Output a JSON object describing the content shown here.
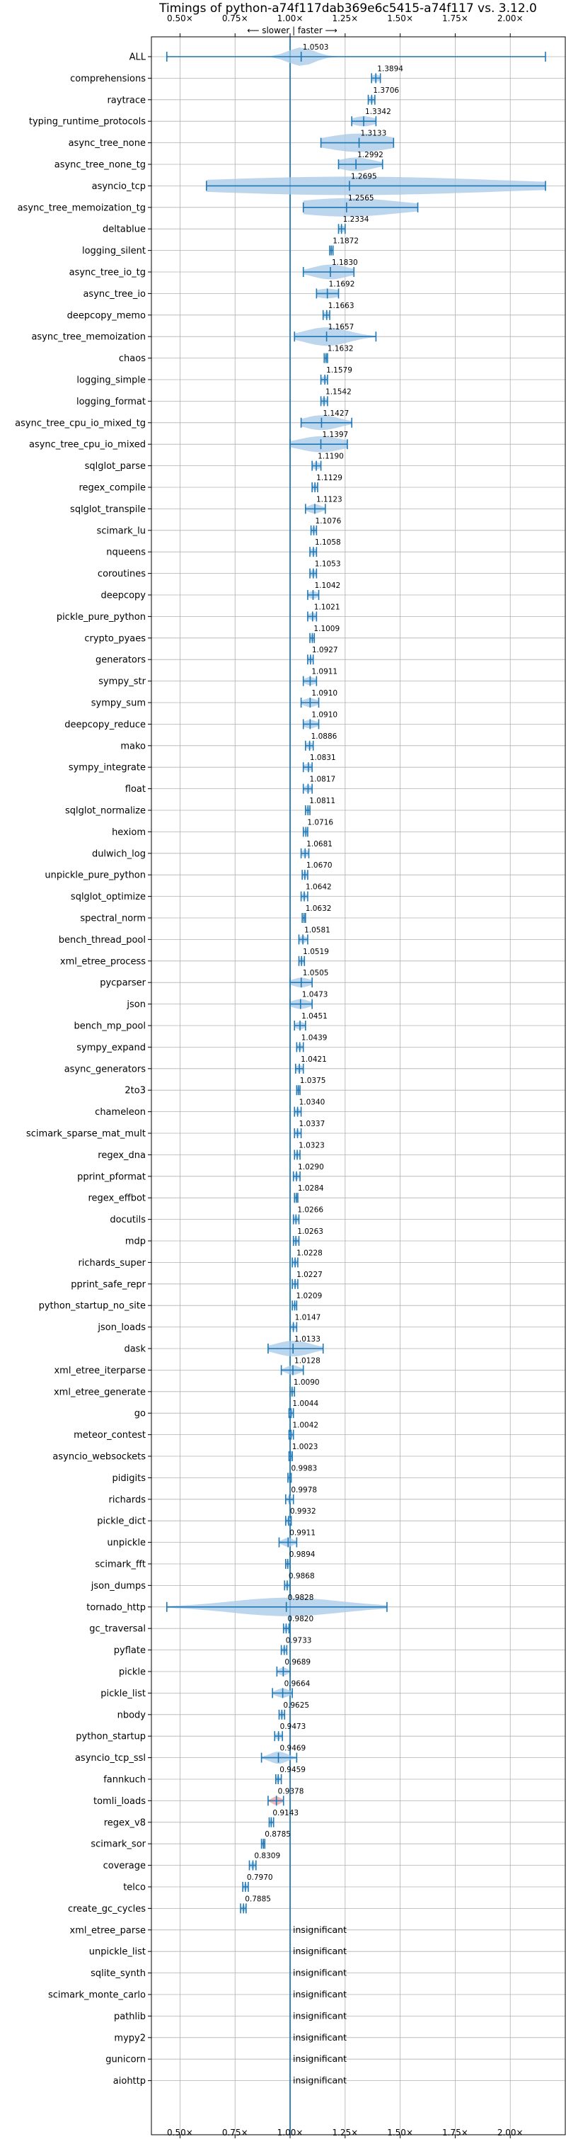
{
  "chart_data": {
    "type": "violin",
    "title": "Timings of python-a74f117dab369e6c5415-a74f117 vs. 3.12.0",
    "direction_note": "⟵ slower | faster ⟶",
    "x_ticks": [
      "0.50×",
      "0.75×",
      "1.00×",
      "1.25×",
      "1.50×",
      "1.75×",
      "2.00×"
    ],
    "x_tick_values": [
      0.5,
      0.75,
      1.0,
      1.25,
      1.5,
      1.75,
      2.0
    ],
    "xlim": [
      0.37,
      2.25
    ],
    "reference_line": 1.0,
    "grid": true,
    "insignificant_text": "insignificant",
    "benchmarks": [
      {
        "name": "ALL",
        "value": 1.0503,
        "label": "1.0503",
        "min": 0.44,
        "max": 2.16,
        "spread": 0.06
      },
      {
        "name": "comprehensions",
        "value": 1.3894,
        "label": "1.3894",
        "min": 1.37,
        "max": 1.41,
        "spread": 0.02
      },
      {
        "name": "raytrace",
        "value": 1.3706,
        "label": "1.3706",
        "min": 1.355,
        "max": 1.385,
        "spread": 0.015
      },
      {
        "name": "typing_runtime_protocols",
        "value": 1.3342,
        "label": "1.3342",
        "min": 1.28,
        "max": 1.39,
        "spread": 0.05
      },
      {
        "name": "async_tree_none",
        "value": 1.3133,
        "label": "1.3133",
        "min": 1.14,
        "max": 1.47,
        "spread": 0.15
      },
      {
        "name": "async_tree_none_tg",
        "value": 1.2992,
        "label": "1.2992",
        "min": 1.22,
        "max": 1.42,
        "spread": 0.08
      },
      {
        "name": "asyncio_tcp",
        "value": 1.2695,
        "label": "1.2695",
        "min": 0.62,
        "max": 2.16,
        "spread": 0.7
      },
      {
        "name": "async_tree_memoization_tg",
        "value": 1.2565,
        "label": "1.2565",
        "min": 1.06,
        "max": 1.58,
        "spread": 0.25
      },
      {
        "name": "deltablue",
        "value": 1.2334,
        "label": "1.2334",
        "min": 1.22,
        "max": 1.25,
        "spread": 0.015
      },
      {
        "name": "logging_silent",
        "value": 1.1872,
        "label": "1.1872",
        "min": 1.18,
        "max": 1.195,
        "spread": 0.01
      },
      {
        "name": "async_tree_io_tg",
        "value": 1.183,
        "label": "1.1830",
        "min": 1.06,
        "max": 1.29,
        "spread": 0.08
      },
      {
        "name": "async_tree_io",
        "value": 1.1692,
        "label": "1.1692",
        "min": 1.12,
        "max": 1.22,
        "spread": 0.06
      },
      {
        "name": "deepcopy_memo",
        "value": 1.1663,
        "label": "1.1663",
        "min": 1.15,
        "max": 1.18,
        "spread": 0.015
      },
      {
        "name": "async_tree_memoization",
        "value": 1.1657,
        "label": "1.1657",
        "min": 1.02,
        "max": 1.39,
        "spread": 0.1
      },
      {
        "name": "chaos",
        "value": 1.1632,
        "label": "1.1632",
        "min": 1.155,
        "max": 1.17,
        "spread": 0.01
      },
      {
        "name": "logging_simple",
        "value": 1.1579,
        "label": "1.1579",
        "min": 1.14,
        "max": 1.17,
        "spread": 0.015
      },
      {
        "name": "logging_format",
        "value": 1.1542,
        "label": "1.1542",
        "min": 1.14,
        "max": 1.17,
        "spread": 0.015
      },
      {
        "name": "async_tree_cpu_io_mixed_tg",
        "value": 1.1427,
        "label": "1.1427",
        "min": 1.05,
        "max": 1.28,
        "spread": 0.08
      },
      {
        "name": "async_tree_cpu_io_mixed",
        "value": 1.1397,
        "label": "1.1397",
        "min": 1.0,
        "max": 1.26,
        "spread": 0.1
      },
      {
        "name": "sqlglot_parse",
        "value": 1.119,
        "label": "1.1190",
        "min": 1.1,
        "max": 1.14,
        "spread": 0.02
      },
      {
        "name": "regex_compile",
        "value": 1.1129,
        "label": "1.1129",
        "min": 1.1,
        "max": 1.125,
        "spread": 0.01
      },
      {
        "name": "sqlglot_transpile",
        "value": 1.1123,
        "label": "1.1123",
        "min": 1.07,
        "max": 1.16,
        "spread": 0.03
      },
      {
        "name": "scimark_lu",
        "value": 1.1076,
        "label": "1.1076",
        "min": 1.095,
        "max": 1.12,
        "spread": 0.01
      },
      {
        "name": "nqueens",
        "value": 1.1058,
        "label": "1.1058",
        "min": 1.09,
        "max": 1.12,
        "spread": 0.015
      },
      {
        "name": "coroutines",
        "value": 1.1053,
        "label": "1.1053",
        "min": 1.09,
        "max": 1.12,
        "spread": 0.015
      },
      {
        "name": "deepcopy",
        "value": 1.1042,
        "label": "1.1042",
        "min": 1.08,
        "max": 1.13,
        "spread": 0.02
      },
      {
        "name": "pickle_pure_python",
        "value": 1.1021,
        "label": "1.1021",
        "min": 1.08,
        "max": 1.12,
        "spread": 0.02
      },
      {
        "name": "crypto_pyaes",
        "value": 1.1009,
        "label": "1.1009",
        "min": 1.09,
        "max": 1.11,
        "spread": 0.01
      },
      {
        "name": "generators",
        "value": 1.0927,
        "label": "1.0927",
        "min": 1.08,
        "max": 1.105,
        "spread": 0.01
      },
      {
        "name": "sympy_str",
        "value": 1.0911,
        "label": "1.0911",
        "min": 1.06,
        "max": 1.12,
        "spread": 0.025
      },
      {
        "name": "sympy_sum",
        "value": 1.091,
        "label": "1.0910",
        "min": 1.05,
        "max": 1.13,
        "spread": 0.03
      },
      {
        "name": "deepcopy_reduce",
        "value": 1.091,
        "label": "1.0910",
        "min": 1.06,
        "max": 1.13,
        "spread": 0.03
      },
      {
        "name": "mako",
        "value": 1.0886,
        "label": "1.0886",
        "min": 1.07,
        "max": 1.105,
        "spread": 0.015
      },
      {
        "name": "sympy_integrate",
        "value": 1.0831,
        "label": "1.0831",
        "min": 1.06,
        "max": 1.1,
        "spread": 0.02
      },
      {
        "name": "float",
        "value": 1.0817,
        "label": "1.0817",
        "min": 1.06,
        "max": 1.1,
        "spread": 0.015
      },
      {
        "name": "sqlglot_normalize",
        "value": 1.0811,
        "label": "1.0811",
        "min": 1.07,
        "max": 1.09,
        "spread": 0.01
      },
      {
        "name": "hexiom",
        "value": 1.0716,
        "label": "1.0716",
        "min": 1.06,
        "max": 1.08,
        "spread": 0.01
      },
      {
        "name": "dulwich_log",
        "value": 1.0681,
        "label": "1.0681",
        "min": 1.05,
        "max": 1.085,
        "spread": 0.015
      },
      {
        "name": "unpickle_pure_python",
        "value": 1.067,
        "label": "1.0670",
        "min": 1.055,
        "max": 1.08,
        "spread": 0.01
      },
      {
        "name": "sqlglot_optimize",
        "value": 1.0642,
        "label": "1.0642",
        "min": 1.05,
        "max": 1.08,
        "spread": 0.01
      },
      {
        "name": "spectral_norm",
        "value": 1.0632,
        "label": "1.0632",
        "min": 1.055,
        "max": 1.07,
        "spread": 0.008
      },
      {
        "name": "bench_thread_pool",
        "value": 1.0581,
        "label": "1.0581",
        "min": 1.04,
        "max": 1.08,
        "spread": 0.015
      },
      {
        "name": "xml_etree_process",
        "value": 1.0519,
        "label": "1.0519",
        "min": 1.04,
        "max": 1.065,
        "spread": 0.01
      },
      {
        "name": "pycparser",
        "value": 1.0505,
        "label": "1.0505",
        "min": 1.0,
        "max": 1.1,
        "spread": 0.04
      },
      {
        "name": "json",
        "value": 1.0473,
        "label": "1.0473",
        "min": 1.0,
        "max": 1.1,
        "spread": 0.04
      },
      {
        "name": "bench_mp_pool",
        "value": 1.0451,
        "label": "1.0451",
        "min": 1.02,
        "max": 1.07,
        "spread": 0.02
      },
      {
        "name": "sympy_expand",
        "value": 1.0439,
        "label": "1.0439",
        "min": 1.03,
        "max": 1.06,
        "spread": 0.01
      },
      {
        "name": "async_generators",
        "value": 1.0421,
        "label": "1.0421",
        "min": 1.025,
        "max": 1.06,
        "spread": 0.015
      },
      {
        "name": "2to3",
        "value": 1.0375,
        "label": "1.0375",
        "min": 1.03,
        "max": 1.045,
        "spread": 0.008
      },
      {
        "name": "chameleon",
        "value": 1.034,
        "label": "1.0340",
        "min": 1.02,
        "max": 1.05,
        "spread": 0.01
      },
      {
        "name": "scimark_sparse_mat_mult",
        "value": 1.0337,
        "label": "1.0337",
        "min": 1.02,
        "max": 1.05,
        "spread": 0.01
      },
      {
        "name": "regex_dna",
        "value": 1.0323,
        "label": "1.0323",
        "min": 1.02,
        "max": 1.045,
        "spread": 0.01
      },
      {
        "name": "pprint_pformat",
        "value": 1.029,
        "label": "1.0290",
        "min": 1.015,
        "max": 1.045,
        "spread": 0.01
      },
      {
        "name": "regex_effbot",
        "value": 1.0284,
        "label": "1.0284",
        "min": 1.02,
        "max": 1.035,
        "spread": 0.006
      },
      {
        "name": "docutils",
        "value": 1.0266,
        "label": "1.0266",
        "min": 1.015,
        "max": 1.04,
        "spread": 0.01
      },
      {
        "name": "mdp",
        "value": 1.0263,
        "label": "1.0263",
        "min": 1.015,
        "max": 1.04,
        "spread": 0.01
      },
      {
        "name": "richards_super",
        "value": 1.0228,
        "label": "1.0228",
        "min": 1.01,
        "max": 1.035,
        "spread": 0.01
      },
      {
        "name": "pprint_safe_repr",
        "value": 1.0227,
        "label": "1.0227",
        "min": 1.01,
        "max": 1.035,
        "spread": 0.01
      },
      {
        "name": "python_startup_no_site",
        "value": 1.0209,
        "label": "1.0209",
        "min": 1.01,
        "max": 1.03,
        "spread": 0.008
      },
      {
        "name": "json_loads",
        "value": 1.0147,
        "label": "1.0147",
        "min": 1.0,
        "max": 1.03,
        "spread": 0.01
      },
      {
        "name": "dask",
        "value": 1.0133,
        "label": "1.0133",
        "min": 0.9,
        "max": 1.15,
        "spread": 0.08
      },
      {
        "name": "xml_etree_iterparse",
        "value": 1.0128,
        "label": "1.0128",
        "min": 0.96,
        "max": 1.06,
        "spread": 0.03
      },
      {
        "name": "xml_etree_generate",
        "value": 1.009,
        "label": "1.0090",
        "min": 1.0,
        "max": 1.02,
        "spread": 0.008
      },
      {
        "name": "go",
        "value": 1.0044,
        "label": "1.0044",
        "min": 0.995,
        "max": 1.015,
        "spread": 0.008
      },
      {
        "name": "meteor_contest",
        "value": 1.0042,
        "label": "1.0042",
        "min": 0.995,
        "max": 1.015,
        "spread": 0.008
      },
      {
        "name": "asyncio_websockets",
        "value": 1.0023,
        "label": "1.0023",
        "min": 0.995,
        "max": 1.01,
        "spread": 0.006
      },
      {
        "name": "pidigits",
        "value": 0.9983,
        "label": "0.9983",
        "min": 0.99,
        "max": 1.005,
        "spread": 0.006
      },
      {
        "name": "richards",
        "value": 0.9978,
        "label": "0.9978",
        "min": 0.98,
        "max": 1.015,
        "spread": 0.01
      },
      {
        "name": "pickle_dict",
        "value": 0.9932,
        "label": "0.9932",
        "min": 0.98,
        "max": 1.005,
        "spread": 0.01
      },
      {
        "name": "unpickle",
        "value": 0.9911,
        "label": "0.9911",
        "min": 0.95,
        "max": 1.03,
        "spread": 0.025
      },
      {
        "name": "scimark_fft",
        "value": 0.9894,
        "label": "0.9894",
        "min": 0.98,
        "max": 1.0,
        "spread": 0.008
      },
      {
        "name": "json_dumps",
        "value": 0.9868,
        "label": "0.9868",
        "min": 0.975,
        "max": 1.0,
        "spread": 0.008
      },
      {
        "name": "tornado_http",
        "value": 0.9828,
        "label": "0.9828",
        "min": 0.44,
        "max": 1.44,
        "spread": 0.25
      },
      {
        "name": "gc_traversal",
        "value": 0.982,
        "label": "0.9820",
        "min": 0.97,
        "max": 0.995,
        "spread": 0.008
      },
      {
        "name": "pyflate",
        "value": 0.9733,
        "label": "0.9733",
        "min": 0.96,
        "max": 0.985,
        "spread": 0.008
      },
      {
        "name": "pickle",
        "value": 0.9689,
        "label": "0.9689",
        "min": 0.94,
        "max": 1.0,
        "spread": 0.02
      },
      {
        "name": "pickle_list",
        "value": 0.9664,
        "label": "0.9664",
        "min": 0.92,
        "max": 1.01,
        "spread": 0.03
      },
      {
        "name": "nbody",
        "value": 0.9625,
        "label": "0.9625",
        "min": 0.95,
        "max": 0.975,
        "spread": 0.008
      },
      {
        "name": "python_startup",
        "value": 0.9473,
        "label": "0.9473",
        "min": 0.93,
        "max": 0.965,
        "spread": 0.012
      },
      {
        "name": "asyncio_tcp_ssl",
        "value": 0.9469,
        "label": "0.9469",
        "min": 0.87,
        "max": 1.03,
        "spread": 0.04
      },
      {
        "name": "fannkuch",
        "value": 0.9459,
        "label": "0.9459",
        "min": 0.935,
        "max": 0.96,
        "spread": 0.008
      },
      {
        "name": "tomli_loads",
        "value": 0.9378,
        "label": "0.9378",
        "min": 0.9,
        "max": 0.97,
        "spread": 0.02,
        "highlight": true
      },
      {
        "name": "regex_v8",
        "value": 0.9143,
        "label": "0.9143",
        "min": 0.905,
        "max": 0.925,
        "spread": 0.006
      },
      {
        "name": "scimark_sor",
        "value": 0.8785,
        "label": "0.8785",
        "min": 0.87,
        "max": 0.885,
        "spread": 0.006
      },
      {
        "name": "coverage",
        "value": 0.8309,
        "label": "0.8309",
        "min": 0.815,
        "max": 0.845,
        "spread": 0.01
      },
      {
        "name": "telco",
        "value": 0.797,
        "label": "0.7970",
        "min": 0.785,
        "max": 0.81,
        "spread": 0.008
      },
      {
        "name": "create_gc_cycles",
        "value": 0.7885,
        "label": "0.7885",
        "min": 0.775,
        "max": 0.8,
        "spread": 0.008
      },
      {
        "name": "xml_etree_parse",
        "insignificant": true
      },
      {
        "name": "unpickle_list",
        "insignificant": true
      },
      {
        "name": "sqlite_synth",
        "insignificant": true
      },
      {
        "name": "scimark_monte_carlo",
        "insignificant": true
      },
      {
        "name": "pathlib",
        "insignificant": true
      },
      {
        "name": "mypy2",
        "insignificant": true
      },
      {
        "name": "gunicorn",
        "insignificant": true
      },
      {
        "name": "aiohttp",
        "insignificant": true
      }
    ],
    "colors": {
      "violin_fill": "#a6c8e8",
      "line": "#1f77b4",
      "grid": "#b0b0b0",
      "highlight": "#e87a7a"
    }
  }
}
